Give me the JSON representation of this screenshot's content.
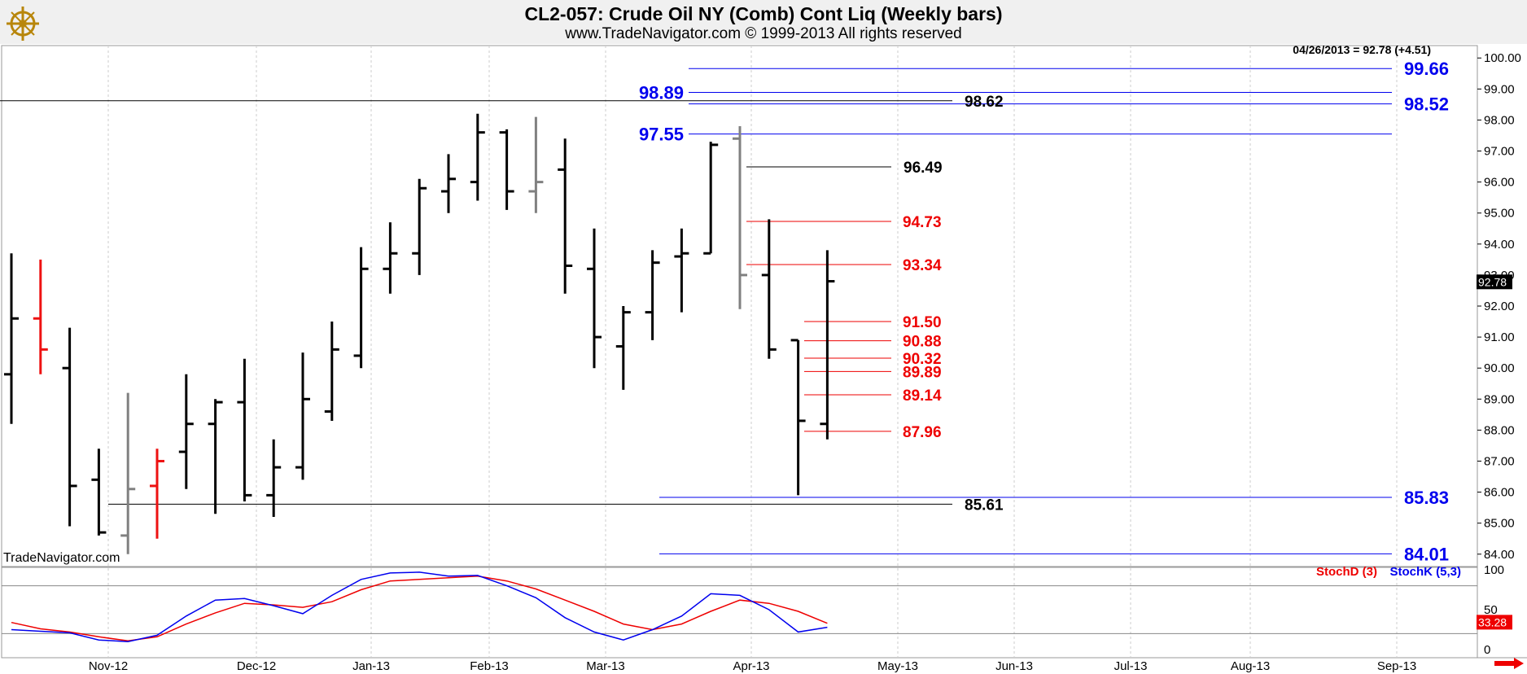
{
  "header": {
    "title": "CL2-057:  Crude Oil NY (Comb) Cont Liq  (Weekly bars)",
    "subtitle": "www.TradeNavigator.com © 1999-2013 All rights reserved"
  },
  "chart_data": {
    "type": "ohlc",
    "last_quote": "04/26/2013 = 92.78 (+4.51)",
    "last_value_tag": "92.78",
    "watermark": "TradeNavigator.com",
    "ylim": [
      83.6,
      100.4
    ],
    "y_ticks": [
      "84.00",
      "85.00",
      "86.00",
      "87.00",
      "88.00",
      "89.00",
      "90.00",
      "91.00",
      "92.00",
      "93.00",
      "94.00",
      "95.00",
      "96.00",
      "97.00",
      "98.00",
      "99.00",
      "100.00"
    ],
    "x_ticks": [
      "Nov-12",
      "Dec-12",
      "Jan-13",
      "Feb-13",
      "Mar-13",
      "Apr-13",
      "May-13",
      "Jun-13",
      "Jul-13",
      "Aug-13",
      "Sep-13"
    ],
    "colors": {
      "up_down": "#000000",
      "highlight_red": "#ee1111",
      "highlight_gray": "#808080",
      "blue": "#0000ee",
      "red": "#ee0000"
    },
    "bars": [
      {
        "o": 89.8,
        "h": 93.7,
        "l": 88.2,
        "c": 91.6,
        "color": "#000000"
      },
      {
        "o": 91.6,
        "h": 93.5,
        "l": 89.8,
        "c": 90.6,
        "color": "#ee1111"
      },
      {
        "o": 90.0,
        "h": 91.3,
        "l": 84.9,
        "c": 86.2,
        "color": "#000000"
      },
      {
        "o": 86.4,
        "h": 87.4,
        "l": 84.6,
        "c": 84.7,
        "color": "#000000"
      },
      {
        "o": 84.6,
        "h": 89.2,
        "l": 84.0,
        "c": 86.1,
        "color": "#808080"
      },
      {
        "o": 86.2,
        "h": 87.4,
        "l": 84.5,
        "c": 87.0,
        "color": "#ee1111"
      },
      {
        "o": 87.3,
        "h": 89.8,
        "l": 86.1,
        "c": 88.2,
        "color": "#000000"
      },
      {
        "o": 88.2,
        "h": 89.0,
        "l": 85.3,
        "c": 88.9,
        "color": "#000000"
      },
      {
        "o": 88.9,
        "h": 90.3,
        "l": 85.7,
        "c": 85.9,
        "color": "#000000"
      },
      {
        "o": 85.9,
        "h": 87.7,
        "l": 85.2,
        "c": 86.8,
        "color": "#000000"
      },
      {
        "o": 86.8,
        "h": 90.5,
        "l": 86.4,
        "c": 89.0,
        "color": "#000000"
      },
      {
        "o": 88.6,
        "h": 91.5,
        "l": 88.3,
        "c": 90.6,
        "color": "#000000"
      },
      {
        "o": 90.4,
        "h": 93.9,
        "l": 90.0,
        "c": 93.2,
        "color": "#000000"
      },
      {
        "o": 93.2,
        "h": 94.7,
        "l": 92.4,
        "c": 93.7,
        "color": "#000000"
      },
      {
        "o": 93.7,
        "h": 96.1,
        "l": 93.0,
        "c": 95.8,
        "color": "#000000"
      },
      {
        "o": 95.7,
        "h": 96.9,
        "l": 95.0,
        "c": 96.1,
        "color": "#000000"
      },
      {
        "o": 96.0,
        "h": 98.2,
        "l": 95.4,
        "c": 97.6,
        "color": "#000000"
      },
      {
        "o": 97.6,
        "h": 97.7,
        "l": 95.1,
        "c": 95.7,
        "color": "#000000"
      },
      {
        "o": 95.7,
        "h": 98.1,
        "l": 95.0,
        "c": 96.0,
        "color": "#808080"
      },
      {
        "o": 96.4,
        "h": 97.4,
        "l": 92.4,
        "c": 93.3,
        "color": "#000000"
      },
      {
        "o": 93.2,
        "h": 94.5,
        "l": 90.0,
        "c": 91.0,
        "color": "#000000"
      },
      {
        "o": 90.7,
        "h": 92.0,
        "l": 89.3,
        "c": 91.8,
        "color": "#000000"
      },
      {
        "o": 91.8,
        "h": 93.8,
        "l": 90.9,
        "c": 93.4,
        "color": "#000000"
      },
      {
        "o": 93.6,
        "h": 94.5,
        "l": 91.8,
        "c": 93.7,
        "color": "#000000"
      },
      {
        "o": 93.7,
        "h": 97.3,
        "l": 93.7,
        "c": 97.2,
        "color": "#000000"
      },
      {
        "o": 97.4,
        "h": 97.8,
        "l": 91.9,
        "c": 93.0,
        "color": "#808080"
      },
      {
        "o": 93.0,
        "h": 94.8,
        "l": 90.3,
        "c": 90.6,
        "color": "#000000"
      },
      {
        "o": 90.9,
        "h": 90.9,
        "l": 85.9,
        "c": 88.3,
        "color": "#000000"
      },
      {
        "o": 88.2,
        "h": 93.8,
        "l": 87.7,
        "c": 92.8,
        "color": "#000000"
      }
    ],
    "levels": [
      {
        "value": 99.66,
        "label": "99.66",
        "color": "#0000ee",
        "label_side": "right"
      },
      {
        "value": 98.89,
        "label": "98.89",
        "color": "#0000ee",
        "label_side": "left"
      },
      {
        "value": 98.52,
        "label": "98.52",
        "color": "#0000ee",
        "label_side": "right"
      },
      {
        "value": 97.55,
        "label": "97.55",
        "color": "#0000ee",
        "label_side": "left"
      },
      {
        "value": 85.83,
        "label": "85.83",
        "color": "#0000ee",
        "label_side": "right"
      },
      {
        "value": 84.01,
        "label": "84.01",
        "color": "#0000ee",
        "label_side": "right"
      },
      {
        "value": 98.62,
        "label": "98.62",
        "color": "#000000",
        "label_side": "end"
      },
      {
        "value": 85.61,
        "label": "85.61",
        "color": "#000000",
        "label_side": "end"
      },
      {
        "value": 96.49,
        "label": "96.49",
        "color": "#000000",
        "label_side": "end"
      },
      {
        "value": 94.73,
        "label": "94.73",
        "color": "#ee0000",
        "label_side": "end"
      },
      {
        "value": 93.34,
        "label": "93.34",
        "color": "#ee0000",
        "label_side": "end"
      },
      {
        "value": 91.5,
        "label": "91.50",
        "color": "#ee0000",
        "label_side": "end"
      },
      {
        "value": 90.88,
        "label": "90.88",
        "color": "#ee0000",
        "label_side": "end"
      },
      {
        "value": 90.32,
        "label": "90.32",
        "color": "#ee0000",
        "label_side": "end"
      },
      {
        "value": 89.89,
        "label": "89.89",
        "color": "#ee0000",
        "label_side": "end"
      },
      {
        "value": 89.14,
        "label": "89.14",
        "color": "#ee0000",
        "label_side": "end"
      },
      {
        "value": 87.96,
        "label": "87.96",
        "color": "#ee0000",
        "label_side": "end"
      }
    ],
    "stochastic": {
      "legend": [
        {
          "name": "StochD (3)",
          "color": "#ee0000"
        },
        {
          "name": "StochK (5,3)",
          "color": "#0000ee"
        }
      ],
      "y_ticks": [
        "0",
        "50",
        "100"
      ],
      "ylim": [
        0,
        100
      ],
      "stoch_d_tag": "33.28",
      "stoch_k": [
        25,
        23,
        21,
        12,
        10,
        18,
        42,
        62,
        64,
        55,
        45,
        68,
        88,
        96,
        97,
        92,
        93,
        80,
        65,
        40,
        22,
        12,
        25,
        42,
        70,
        68,
        50,
        22,
        28
      ],
      "stoch_d": [
        34,
        26,
        22,
        16,
        11,
        16,
        32,
        46,
        58,
        56,
        53,
        60,
        75,
        86,
        88,
        90,
        92,
        86,
        76,
        62,
        48,
        32,
        25,
        32,
        48,
        62,
        58,
        48,
        33
      ]
    }
  }
}
